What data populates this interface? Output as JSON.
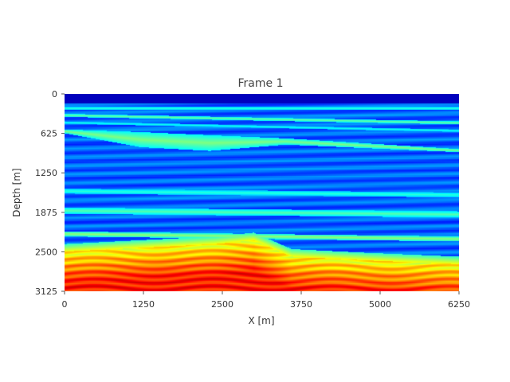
{
  "chart_data": {
    "type": "heatmap",
    "title": "Frame 1",
    "xlabel": "X [m]",
    "ylabel": "Depth [m]",
    "xlim": [
      0,
      6250
    ],
    "ylim": [
      3125,
      0
    ],
    "x_ticks": [
      0,
      1250,
      2500,
      3750,
      5000,
      6250
    ],
    "y_ticks": [
      0,
      625,
      1250,
      1875,
      2500,
      3125
    ],
    "x_tick_labels": [
      "0",
      "1250",
      "2500",
      "3750",
      "5000",
      "6250"
    ],
    "y_tick_labels": [
      "0",
      "625",
      "1250",
      "1875",
      "2500",
      "3125"
    ],
    "colormap": "jet",
    "water_bottom_depth": 150,
    "layers": [
      {
        "kind": "band",
        "x": [
          0,
          6250
        ],
        "top": [
          200,
          200
        ],
        "bottom": [
          250,
          250
        ],
        "value": 0.42
      },
      {
        "kind": "band",
        "x": [
          0,
          6250
        ],
        "top": [
          310,
          430
        ],
        "bottom": [
          360,
          480
        ],
        "value": 0.48
      },
      {
        "kind": "band",
        "x": [
          0,
          6250
        ],
        "top": [
          430,
          560
        ],
        "bottom": [
          470,
          600
        ],
        "value": 0.4
      },
      {
        "kind": "wedge",
        "x": [
          0,
          1200,
          2300,
          3500,
          6250
        ],
        "top": [
          560,
          600,
          650,
          700,
          870
        ],
        "bottom": [
          620,
          840,
          900,
          800,
          920
        ],
        "value": 0.5
      },
      {
        "kind": "band",
        "x": [
          0,
          6250
        ],
        "top": [
          1500,
          1560
        ],
        "bottom": [
          1580,
          1640
        ],
        "value": 0.42
      },
      {
        "kind": "band",
        "x": [
          0,
          6250
        ],
        "top": [
          1800,
          1860
        ],
        "bottom": [
          1900,
          1960
        ],
        "value": 0.46
      },
      {
        "kind": "band",
        "x": [
          0,
          6250
        ],
        "top": [
          2180,
          2260
        ],
        "bottom": [
          2260,
          2340
        ],
        "value": 0.52
      }
    ],
    "basement": {
      "x": [
        0,
        2400,
        3000,
        3600,
        4800,
        6250
      ],
      "top": [
        2500,
        2380,
        2320,
        2580,
        2640,
        2700
      ],
      "value_top": 0.62,
      "value_bottom": 0.85
    }
  }
}
